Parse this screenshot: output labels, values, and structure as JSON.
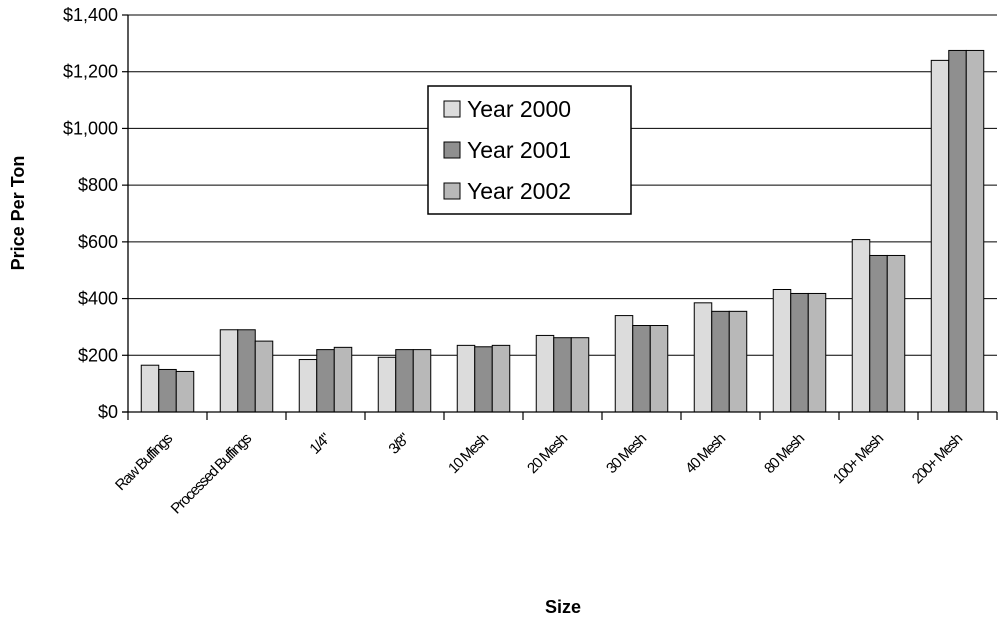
{
  "chart_data": {
    "type": "bar",
    "title": "",
    "xlabel": "Size",
    "ylabel": "Price Per Ton",
    "ylim": [
      0,
      1400
    ],
    "ytick_step": 200,
    "ytick_prefix": "$",
    "grid": true,
    "legend_position": "top-center",
    "categories": [
      "Raw Buffings",
      "Processed Buffings",
      "1/4\"",
      "3/8\"",
      "10 Mesh",
      "20 Mesh",
      "30 Mesh",
      "40 Mesh",
      "80 Mesh",
      "100+ Mesh",
      "200+ Mesh"
    ],
    "series": [
      {
        "name": "Year 2000",
        "color": "#dcdcdc",
        "values": [
          165,
          290,
          185,
          193,
          235,
          270,
          340,
          385,
          432,
          608,
          1240
        ]
      },
      {
        "name": "Year 2001",
        "color": "#8f8f8f",
        "values": [
          150,
          290,
          220,
          220,
          230,
          262,
          305,
          355,
          418,
          552,
          1275
        ]
      },
      {
        "name": "Year 2002",
        "color": "#b8b8b8",
        "values": [
          143,
          250,
          228,
          220,
          235,
          262,
          305,
          355,
          418,
          552,
          1275
        ]
      }
    ]
  }
}
